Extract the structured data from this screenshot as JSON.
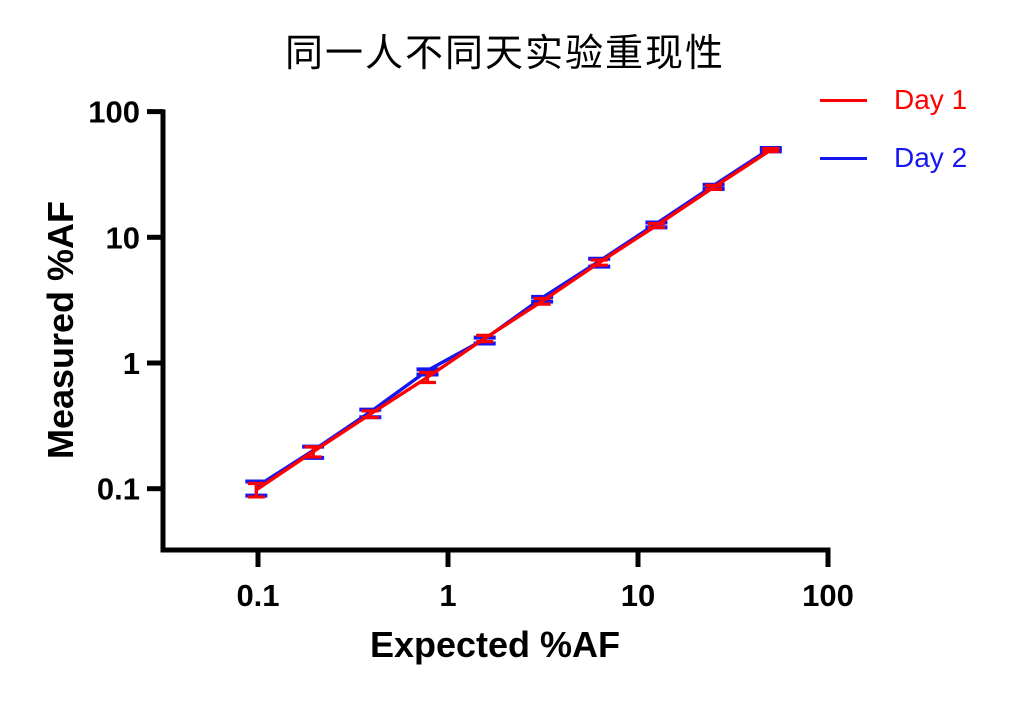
{
  "figure": {
    "background": "#FFFFFF",
    "axis_color": "#000000"
  },
  "chart_data": {
    "type": "line",
    "title": "同一人不同天实验重现性",
    "xlabel": "Expected %AF",
    "ylabel": "Measured %AF",
    "x_scale": "log",
    "y_scale": "log",
    "xlim": [
      0.03,
      100
    ],
    "ylim": [
      0.033,
      100
    ],
    "grid": false,
    "legend_position": "top-right",
    "x_ticks": [
      0.1,
      1,
      10,
      100
    ],
    "x_tick_labels": [
      "0.1",
      "1",
      "10",
      "100"
    ],
    "y_ticks": [
      0.1,
      1,
      10,
      100
    ],
    "y_tick_labels": [
      "0.1",
      "1",
      "10",
      "100"
    ],
    "x": [
      0.098,
      0.195,
      0.39,
      0.78,
      1.56,
      3.13,
      6.25,
      12.5,
      25,
      50
    ],
    "series": [
      {
        "name": "Day 1",
        "color": "#FF0000",
        "marker": "error-bar",
        "values": [
          0.098,
          0.197,
          0.392,
          0.77,
          1.57,
          3.1,
          6.3,
          12.4,
          25.0,
          49.5
        ],
        "errors": [
          0.012,
          0.018,
          0.024,
          0.07,
          0.09,
          0.16,
          0.3,
          0.45,
          0.9,
          1.4
        ]
      },
      {
        "name": "Day 2",
        "color": "#1616F0",
        "marker": "error-bar",
        "values": [
          0.101,
          0.196,
          0.398,
          0.85,
          1.51,
          3.22,
          6.3,
          12.55,
          25.2,
          49.8
        ],
        "errors": [
          0.013,
          0.02,
          0.028,
          0.04,
          0.08,
          0.14,
          0.45,
          0.55,
          1.0,
          1.5
        ]
      }
    ]
  }
}
